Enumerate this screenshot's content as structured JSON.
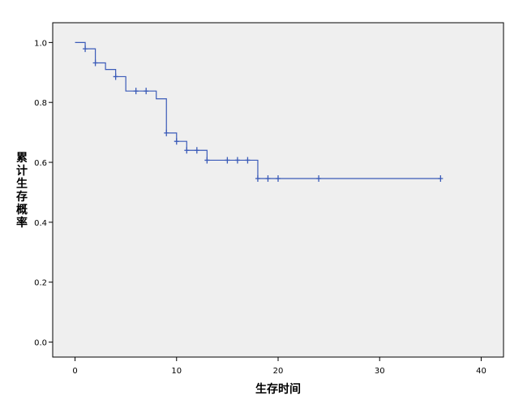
{
  "chart_data": {
    "type": "line",
    "title": "",
    "xlabel": "生存时间",
    "ylabel": "累计生存概率",
    "xlim": [
      -2.2,
      42.2
    ],
    "ylim": [
      -0.05,
      1.066
    ],
    "xticks": [
      0,
      10,
      20,
      30,
      40
    ],
    "yticks": [
      0.0,
      0.2,
      0.4,
      0.6,
      0.8,
      1.0
    ],
    "xtick_labels": [
      "0",
      "10",
      "20",
      "30",
      "40"
    ],
    "ytick_labels": [
      "0.0",
      "0.2",
      "0.4",
      "0.6",
      "0.8",
      "1.0"
    ],
    "grid": false,
    "plot_background": "#efefef",
    "line_color": "#3b5bb8",
    "series": [
      {
        "step": [
          [
            0,
            1.0
          ],
          [
            1,
            0.979
          ],
          [
            2,
            0.932
          ],
          [
            3,
            0.91
          ],
          [
            4,
            0.886
          ],
          [
            5,
            0.838
          ],
          [
            8,
            0.812
          ],
          [
            9,
            0.698
          ],
          [
            10,
            0.67
          ],
          [
            11,
            0.64
          ],
          [
            13,
            0.607
          ],
          [
            18,
            0.546
          ],
          [
            36,
            0.546
          ]
        ],
        "censored": [
          [
            1,
            0.979
          ],
          [
            2,
            0.932
          ],
          [
            4,
            0.886
          ],
          [
            6,
            0.838
          ],
          [
            7,
            0.838
          ],
          [
            9,
            0.698
          ],
          [
            10,
            0.67
          ],
          [
            11,
            0.64
          ],
          [
            12,
            0.64
          ],
          [
            13,
            0.607
          ],
          [
            15,
            0.607
          ],
          [
            16,
            0.607
          ],
          [
            17,
            0.607
          ],
          [
            18,
            0.546
          ],
          [
            19,
            0.546
          ],
          [
            20,
            0.546
          ],
          [
            24,
            0.546
          ],
          [
            36,
            0.546
          ]
        ]
      }
    ]
  }
}
